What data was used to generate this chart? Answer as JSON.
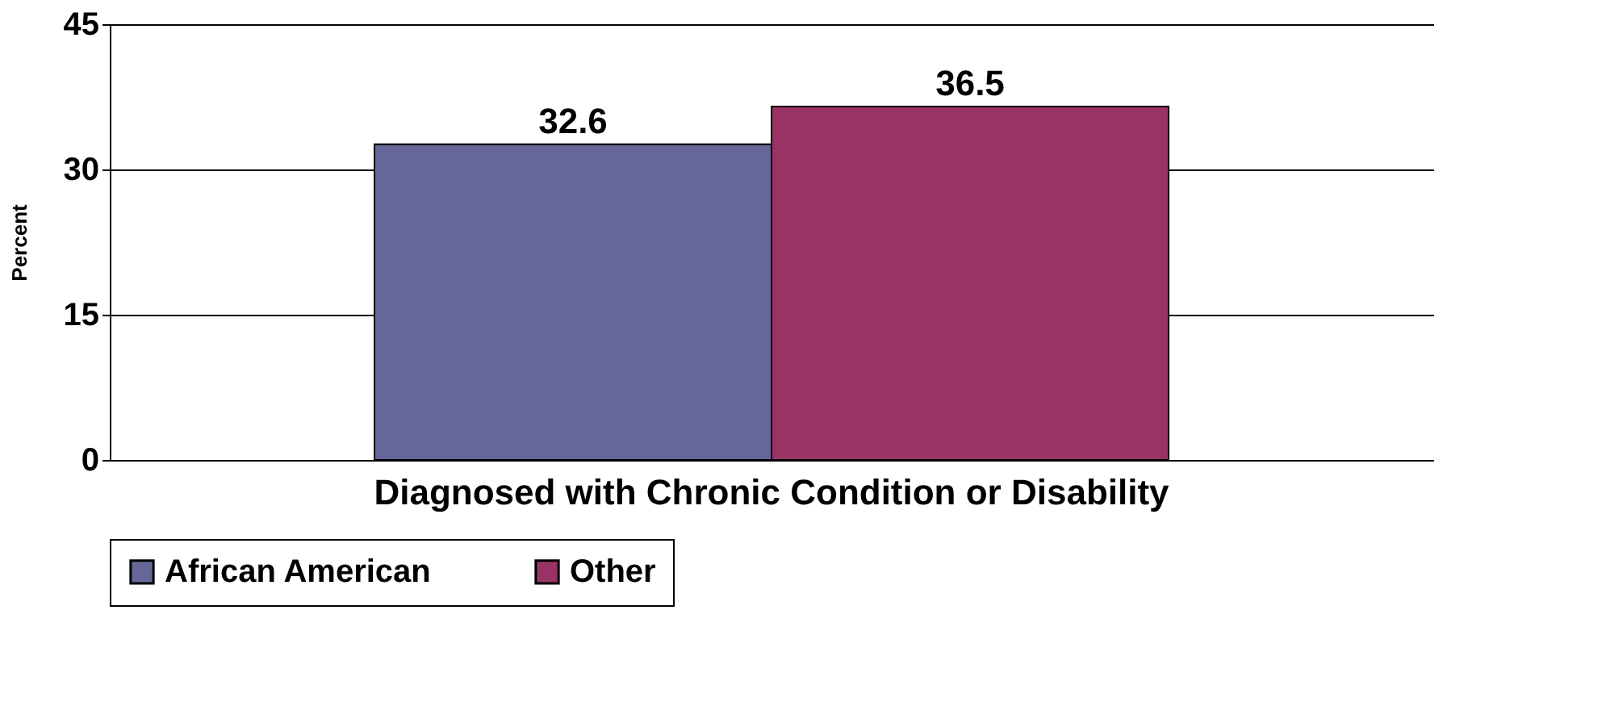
{
  "chart_data": {
    "type": "bar",
    "categories": [
      "Diagnosed with Chronic Condition or Disability"
    ],
    "ylabel": "Percent",
    "series": [
      {
        "name": "African American",
        "color": "#666699",
        "values": [
          32.6
        ]
      },
      {
        "name": "Other",
        "color": "#993366",
        "values": [
          36.5
        ]
      }
    ],
    "ylim": [
      0,
      45
    ],
    "yticks": [
      0,
      15,
      30,
      45
    ],
    "grid": "y",
    "legend": "bottom",
    "data_labels": true
  }
}
